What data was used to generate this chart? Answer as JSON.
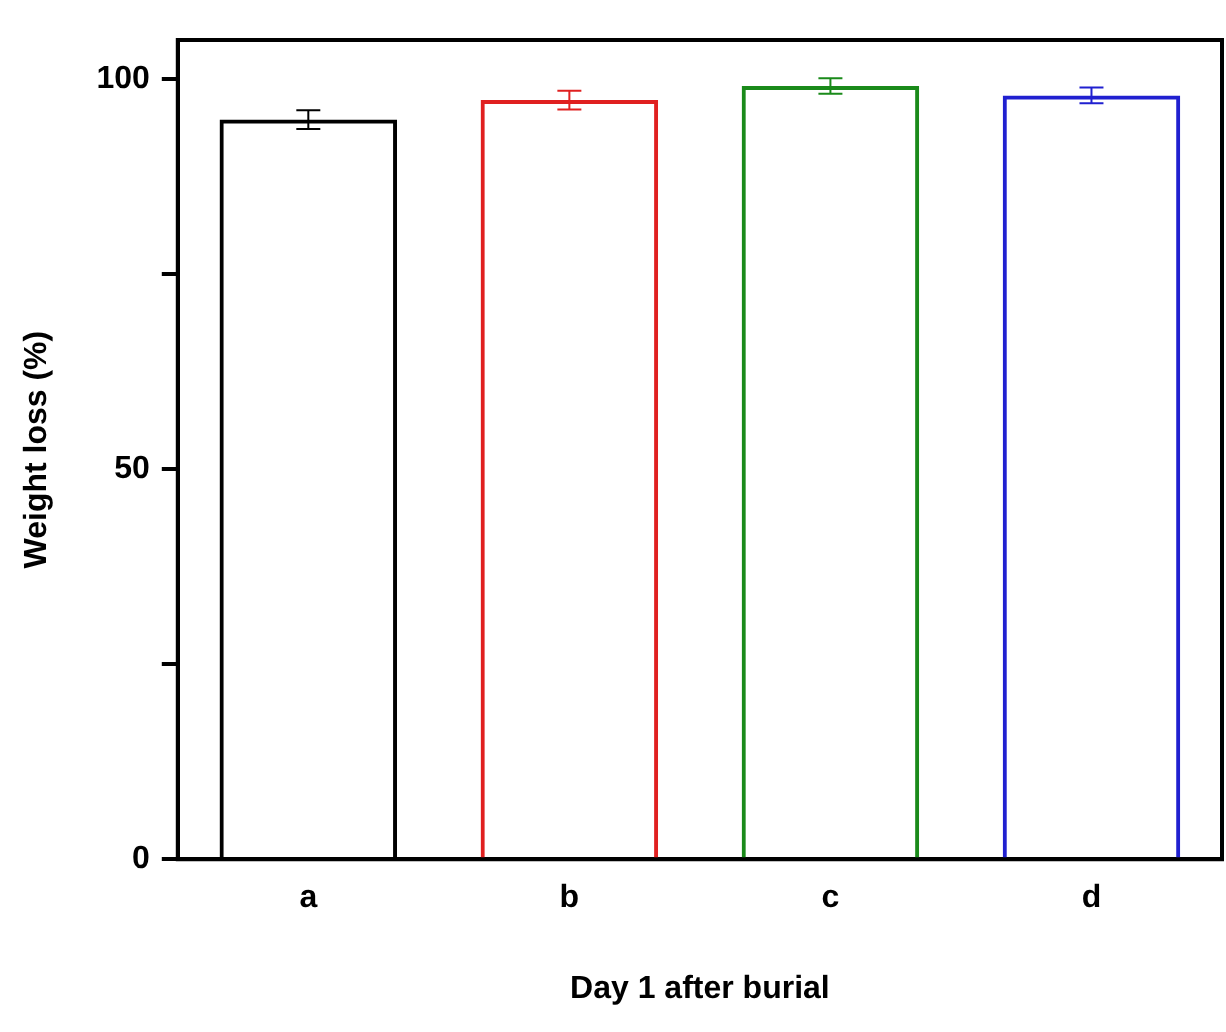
{
  "chart_data": {
    "type": "bar",
    "xlabel": "Day 1 after burial",
    "ylabel": "Weight loss (%)",
    "categories": [
      "a",
      "b",
      "c",
      "d"
    ],
    "values": [
      94.8,
      97.3,
      99.1,
      97.9
    ],
    "colors": [
      "#000000",
      "#e02020",
      "#1a8a1a",
      "#2020d0"
    ],
    "errors": [
      1.2,
      1.2,
      1.0,
      1.0
    ],
    "ylim": [
      0,
      105
    ],
    "yticks": [
      0,
      {
        "value": 25,
        "label": null
      },
      50,
      {
        "value": 75,
        "label": null
      },
      100
    ],
    "grid": false,
    "legend": false
  }
}
